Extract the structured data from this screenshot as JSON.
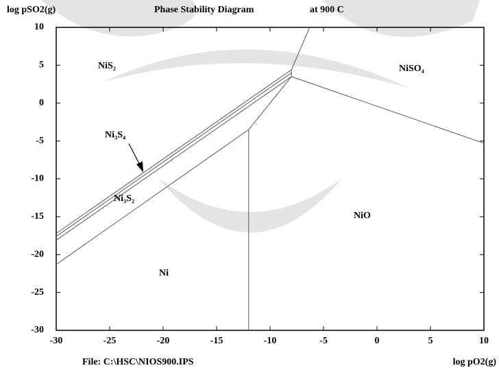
{
  "chart_data": {
    "type": "line",
    "ylabel": "log pSO2(g)",
    "title": "Phase Stability Diagram",
    "subtitle": "at  900 C",
    "footer": "File: C:\\HSC\\NIOS900.IPS",
    "xlabel": "log pO2(g)",
    "xlim": [
      -30,
      10
    ],
    "ylim": [
      -30,
      10
    ],
    "xticks": [
      -30,
      -25,
      -20,
      -15,
      -10,
      -5,
      0,
      5,
      10
    ],
    "yticks": [
      -30,
      -25,
      -20,
      -15,
      -10,
      -5,
      0,
      5,
      10
    ],
    "series": [
      {
        "color": "#555555",
        "x": [
          -6.3,
          -8
        ],
        "values": [
          10,
          4.4
        ]
      },
      {
        "color": "#555555",
        "x": [
          -30,
          -12,
          -8
        ],
        "values": [
          -21.3,
          -3.5,
          3.5
        ]
      },
      {
        "color": "#555555",
        "x": [
          -8,
          10
        ],
        "values": [
          3.5,
          -5.3
        ]
      },
      {
        "color": "#555555",
        "x": [
          -12,
          -12
        ],
        "values": [
          -3.5,
          -30
        ]
      },
      {
        "color": "#555555",
        "x": [
          -30,
          -8
        ],
        "values": [
          -17.2,
          4.4
        ]
      },
      {
        "color": "#555555",
        "x": [
          -30,
          -8
        ],
        "values": [
          -17.6,
          4.0
        ]
      },
      {
        "color": "#555555",
        "x": [
          -30,
          -8
        ],
        "values": [
          -18.1,
          3.5
        ]
      },
      {
        "color": "#555555",
        "x": [
          -8,
          -8
        ],
        "values": [
          4.4,
          3.5
        ]
      }
    ],
    "annotations": [
      "NiS₂",
      "NiSO₄",
      "Ni₃S₄",
      "Ni₃S₂",
      "NiO",
      "Ni"
    ]
  }
}
